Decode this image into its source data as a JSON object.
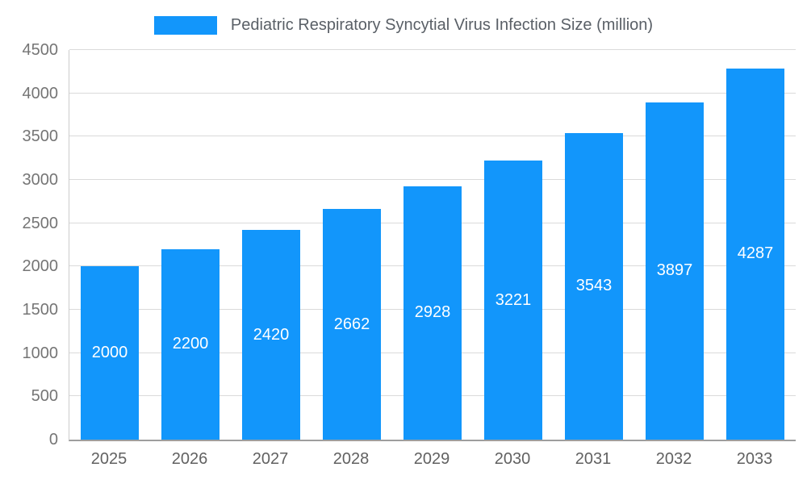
{
  "chart_data": {
    "type": "bar",
    "title": "Pediatric Respiratory Syncytial Virus Infection Size (million)",
    "categories": [
      "2025",
      "2026",
      "2027",
      "2028",
      "2029",
      "2030",
      "2031",
      "2032",
      "2033"
    ],
    "values": [
      2000,
      2200,
      2420,
      2662,
      2928,
      3221,
      3543,
      3897,
      4287
    ],
    "xlabel": "",
    "ylabel": "",
    "ylim": [
      0,
      4500
    ],
    "yticks": [
      0,
      500,
      1000,
      1500,
      2000,
      2500,
      3000,
      3500,
      4000,
      4500
    ],
    "bar_color": "#1296FB",
    "bar_label_color": "#FFFFFF",
    "grid": true,
    "legend_position": "top"
  }
}
